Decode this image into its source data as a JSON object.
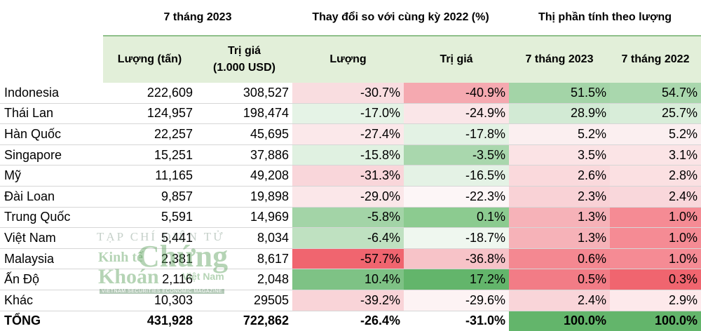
{
  "header": {
    "group_1": "7 tháng 2023",
    "group_2": "Thay đổi so với cùng kỳ 2022 (%)",
    "group_3": "Thị phần tính theo lượng",
    "col_volume": "Lượng (tấn)",
    "col_value_1": "Trị giá",
    "col_value_2": "(1.000 USD)",
    "col_chg_volume": "Lượng",
    "col_chg_value": "Trị giá",
    "col_share_2023": "7 tháng 2023",
    "col_share_2022": "7 tháng 2022"
  },
  "rows": [
    {
      "name": "Indonesia",
      "volume": "222,609",
      "value": "308,527",
      "chg_volume": "-30.7%",
      "chg_value": "-40.9%",
      "share_2023": "51.5%",
      "share_2022": "54.7%",
      "colors": [
        "#f9dde0",
        "#f5a9b0",
        "#a3d4a7",
        "#a9d7ad"
      ]
    },
    {
      "name": "Thái Lan",
      "volume": "124,957",
      "value": "198,474",
      "chg_volume": "-17.0%",
      "chg_value": "-24.9%",
      "share_2023": "28.9%",
      "share_2022": "25.7%",
      "colors": [
        "#e5f3e6",
        "#fae6e8",
        "#d2ead4",
        "#d8edd9"
      ]
    },
    {
      "name": "Hàn Quốc",
      "volume": "22,257",
      "value": "45,695",
      "chg_volume": "-27.4%",
      "chg_value": "-17.8%",
      "share_2023": "5.2%",
      "share_2022": "5.2%",
      "colors": [
        "#fbe8ea",
        "#e3f2e4",
        "#fbeff0",
        "#fbeff0"
      ]
    },
    {
      "name": "Singapore",
      "volume": "15,251",
      "value": "37,886",
      "chg_volume": "-15.8%",
      "chg_value": "-3.5%",
      "share_2023": "3.5%",
      "share_2022": "3.1%",
      "colors": [
        "#e0f1e1",
        "#a9d7ad",
        "#fbe3e5",
        "#fbe4e6"
      ]
    },
    {
      "name": "Mỹ",
      "volume": "11,165",
      "value": "49,208",
      "chg_volume": "-31.3%",
      "chg_value": "-16.5%",
      "share_2023": "2.6%",
      "share_2022": "2.8%",
      "colors": [
        "#f9d6da",
        "#e4f2e5",
        "#fad9dc",
        "#fbe0e2"
      ]
    },
    {
      "name": "Đài Loan",
      "volume": "9,857",
      "value": "19,898",
      "chg_volume": "-29.0%",
      "chg_value": "-22.3%",
      "share_2023": "2.3%",
      "share_2022": "2.4%",
      "colors": [
        "#fbe7e9",
        "#fdf6f7",
        "#f9d2d6",
        "#f9d7db"
      ]
    },
    {
      "name": "Trung Quốc",
      "volume": "5,591",
      "value": "14,969",
      "chg_volume": "-5.8%",
      "chg_value": "0.1%",
      "share_2023": "1.3%",
      "share_2022": "1.0%",
      "colors": [
        "#a3d4a7",
        "#8ccb90",
        "#f6b2b8",
        "#f58b94"
      ]
    },
    {
      "name": "Việt Nam",
      "volume": "5,441",
      "value": "8,034",
      "chg_volume": "-6.4%",
      "chg_value": "-18.7%",
      "share_2023": "1.3%",
      "share_2022": "1.0%",
      "colors": [
        "#bfe1c1",
        "#eff7ef",
        "#f6b2b8",
        "#f58b94"
      ]
    },
    {
      "name": "Malaysia",
      "volume": "2,381",
      "value": "8,617",
      "chg_volume": "-57.7%",
      "chg_value": "-36.8%",
      "share_2023": "0.6%",
      "share_2022": "1.0%",
      "colors": [
        "#f0656f",
        "#f7c3c8",
        "#f48891",
        "#f58b94"
      ]
    },
    {
      "name": "Ấn Độ",
      "volume": "2,116",
      "value": "2,048",
      "chg_volume": "10.4%",
      "chg_value": "17.2%",
      "share_2023": "0.5%",
      "share_2022": "0.3%",
      "colors": [
        "#7ec285",
        "#63b56b",
        "#f27c86",
        "#f0656f"
      ]
    },
    {
      "name": "Khác",
      "volume": "10,303",
      "value": "29505",
      "chg_volume": "-39.2%",
      "chg_value": "-29.6%",
      "share_2023": "2.4%",
      "share_2022": "2.9%",
      "colors": [
        "#f9d4d8",
        "#fdf3f4",
        "#f9d5d9",
        "#fde9eb"
      ]
    }
  ],
  "total": {
    "name": "TỔNG",
    "volume": "431,928",
    "value": "722,862",
    "chg_volume": "-26.4%",
    "chg_value": "-31.0%",
    "share_2023": "100.0%",
    "share_2022": "100.0%",
    "colors": [
      "#ffffff",
      "#ffffff",
      "#63b56b",
      "#63b56b"
    ]
  },
  "watermark": {
    "line_1": "TẠP CHÍ ĐIỆN TỬ",
    "brand_kinh_te": "Kinh tế",
    "brand_chung": "Chứng",
    "brand_khoan": "Khoán",
    "brand_viet_nam": "Việt Nam",
    "tagline": "VIETNAM SECURITIES ECONOMIC MAGAZINE"
  }
}
